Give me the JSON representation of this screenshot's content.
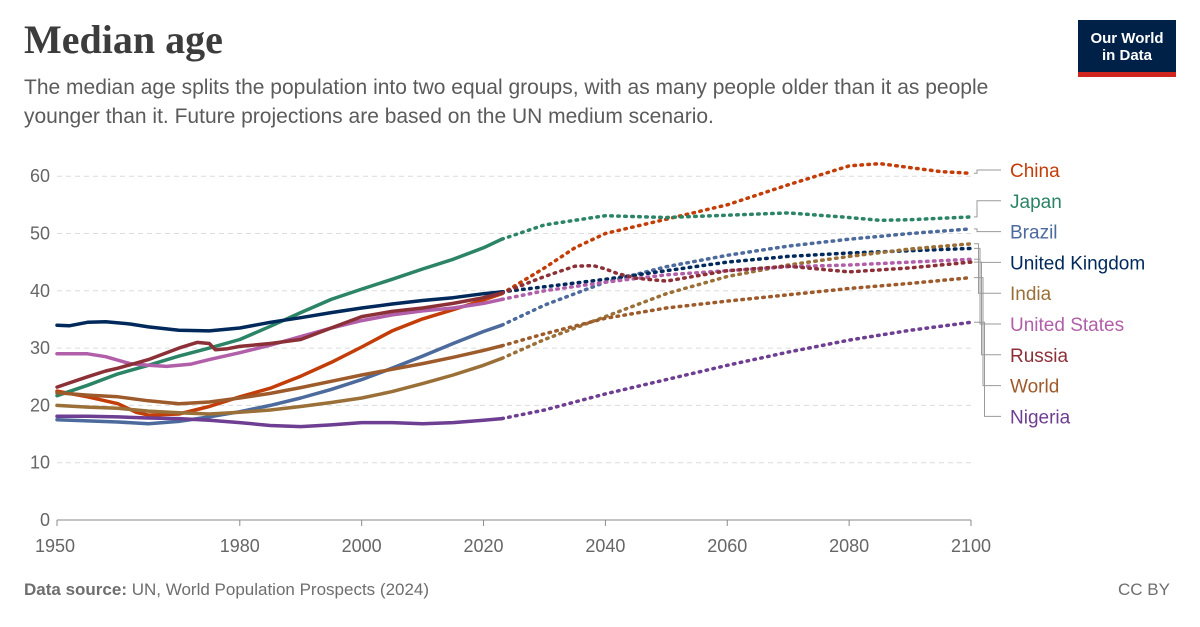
{
  "title": "Median age",
  "subtitle": "The median age splits the population into two equal groups, with as many people older than it as people younger than it. Future projections are based on the UN medium scenario.",
  "logo": {
    "line1": "Our World",
    "line2": "in Data",
    "bg_color": "#002147",
    "accent_color": "#ce261e"
  },
  "footer": {
    "source_label": "Data source:",
    "source_text": "UN, World Population Prospects (2024)",
    "license": "CC BY"
  },
  "chart_data": {
    "type": "line",
    "title": "Median age",
    "xlim": [
      1950,
      2100
    ],
    "ylim": [
      0,
      65
    ],
    "x_ticks": [
      1950,
      1980,
      2000,
      2020,
      2040,
      2060,
      2080,
      2100
    ],
    "y_ticks": [
      0,
      10,
      20,
      30,
      40,
      50,
      60
    ],
    "projection_start": 2023,
    "grid": "horizontal-dashed",
    "legend": "right-labels",
    "series": [
      {
        "name": "China",
        "color": "#c33d08",
        "points": [
          [
            1950,
            22.5
          ],
          [
            1955,
            21.5
          ],
          [
            1960,
            20.3
          ],
          [
            1963,
            18.8
          ],
          [
            1965,
            18.3
          ],
          [
            1970,
            18.5
          ],
          [
            1975,
            19.8
          ],
          [
            1980,
            21.5
          ],
          [
            1985,
            23
          ],
          [
            1990,
            25.1
          ],
          [
            1995,
            27.5
          ],
          [
            2000,
            30.2
          ],
          [
            2005,
            33
          ],
          [
            2010,
            35.1
          ],
          [
            2015,
            36.7
          ],
          [
            2020,
            38.4
          ],
          [
            2023,
            39.5
          ],
          [
            2030,
            44
          ],
          [
            2035,
            47.5
          ],
          [
            2040,
            50
          ],
          [
            2050,
            52.5
          ],
          [
            2060,
            55
          ],
          [
            2070,
            58.5
          ],
          [
            2080,
            61.8
          ],
          [
            2085,
            62.2
          ],
          [
            2090,
            61.5
          ],
          [
            2095,
            60.8
          ],
          [
            2100,
            60.5
          ]
        ]
      },
      {
        "name": "Japan",
        "color": "#2b8465",
        "points": [
          [
            1950,
            21.7
          ],
          [
            1955,
            23.5
          ],
          [
            1960,
            25.5
          ],
          [
            1965,
            27
          ],
          [
            1970,
            28.6
          ],
          [
            1975,
            30
          ],
          [
            1980,
            31.5
          ],
          [
            1985,
            33.8
          ],
          [
            1990,
            36.2
          ],
          [
            1995,
            38.5
          ],
          [
            2000,
            40.3
          ],
          [
            2005,
            42
          ],
          [
            2010,
            43.8
          ],
          [
            2015,
            45.5
          ],
          [
            2020,
            47.5
          ],
          [
            2023,
            49
          ],
          [
            2030,
            51.5
          ],
          [
            2040,
            53.1
          ],
          [
            2050,
            52.8
          ],
          [
            2060,
            53.2
          ],
          [
            2070,
            53.6
          ],
          [
            2080,
            52.8
          ],
          [
            2085,
            52.3
          ],
          [
            2090,
            52.4
          ],
          [
            2100,
            52.9
          ]
        ]
      },
      {
        "name": "Brazil",
        "color": "#4c6a9c",
        "points": [
          [
            1950,
            17.5
          ],
          [
            1955,
            17.3
          ],
          [
            1960,
            17.1
          ],
          [
            1965,
            16.8
          ],
          [
            1970,
            17.2
          ],
          [
            1975,
            18
          ],
          [
            1980,
            18.9
          ],
          [
            1985,
            20
          ],
          [
            1990,
            21.3
          ],
          [
            1995,
            22.8
          ],
          [
            2000,
            24.5
          ],
          [
            2005,
            26.5
          ],
          [
            2010,
            28.6
          ],
          [
            2015,
            30.8
          ],
          [
            2020,
            32.9
          ],
          [
            2023,
            34
          ],
          [
            2030,
            37.5
          ],
          [
            2040,
            41.5
          ],
          [
            2050,
            44.2
          ],
          [
            2060,
            46.2
          ],
          [
            2070,
            47.8
          ],
          [
            2080,
            49
          ],
          [
            2090,
            50
          ],
          [
            2100,
            50.8
          ]
        ]
      },
      {
        "name": "United Kingdom",
        "color": "#00295b",
        "points": [
          [
            1950,
            34
          ],
          [
            1952,
            33.9
          ],
          [
            1955,
            34.5
          ],
          [
            1958,
            34.6
          ],
          [
            1962,
            34.2
          ],
          [
            1965,
            33.7
          ],
          [
            1970,
            33.1
          ],
          [
            1975,
            33
          ],
          [
            1980,
            33.5
          ],
          [
            1985,
            34.5
          ],
          [
            1990,
            35.3
          ],
          [
            1995,
            36.2
          ],
          [
            2000,
            37
          ],
          [
            2005,
            37.7
          ],
          [
            2010,
            38.3
          ],
          [
            2015,
            38.8
          ],
          [
            2020,
            39.5
          ],
          [
            2023,
            39.8
          ],
          [
            2030,
            40.7
          ],
          [
            2040,
            42
          ],
          [
            2050,
            43.5
          ],
          [
            2060,
            45
          ],
          [
            2070,
            46
          ],
          [
            2080,
            46.6
          ],
          [
            2090,
            47
          ],
          [
            2100,
            47.4
          ]
        ]
      },
      {
        "name": "India",
        "color": "#9a7038",
        "points": [
          [
            1950,
            20
          ],
          [
            1955,
            19.7
          ],
          [
            1960,
            19.5
          ],
          [
            1965,
            19
          ],
          [
            1970,
            18.7
          ],
          [
            1975,
            18.5
          ],
          [
            1980,
            18.8
          ],
          [
            1985,
            19.2
          ],
          [
            1990,
            19.8
          ],
          [
            1995,
            20.5
          ],
          [
            2000,
            21.3
          ],
          [
            2005,
            22.4
          ],
          [
            2010,
            23.8
          ],
          [
            2015,
            25.3
          ],
          [
            2020,
            27
          ],
          [
            2023,
            28.2
          ],
          [
            2030,
            31.5
          ],
          [
            2040,
            35.5
          ],
          [
            2050,
            39.5
          ],
          [
            2060,
            42.5
          ],
          [
            2070,
            44.5
          ],
          [
            2080,
            46
          ],
          [
            2090,
            47.3
          ],
          [
            2100,
            48.2
          ]
        ]
      },
      {
        "name": "United States",
        "color": "#b15fa8",
        "points": [
          [
            1950,
            29
          ],
          [
            1955,
            29
          ],
          [
            1958,
            28.5
          ],
          [
            1962,
            27.3
          ],
          [
            1965,
            27
          ],
          [
            1968,
            26.8
          ],
          [
            1972,
            27.2
          ],
          [
            1975,
            28
          ],
          [
            1980,
            29.2
          ],
          [
            1985,
            30.5
          ],
          [
            1990,
            32
          ],
          [
            1995,
            33.5
          ],
          [
            2000,
            34.8
          ],
          [
            2005,
            35.8
          ],
          [
            2010,
            36.5
          ],
          [
            2015,
            37
          ],
          [
            2020,
            37.8
          ],
          [
            2023,
            38.5
          ],
          [
            2030,
            40
          ],
          [
            2040,
            41.5
          ],
          [
            2050,
            42.8
          ],
          [
            2060,
            43.5
          ],
          [
            2070,
            44.2
          ],
          [
            2080,
            44.5
          ],
          [
            2090,
            45
          ],
          [
            2100,
            45.5
          ]
        ]
      },
      {
        "name": "Russia",
        "color": "#8c3037",
        "points": [
          [
            1950,
            23.2
          ],
          [
            1955,
            25
          ],
          [
            1958,
            26
          ],
          [
            1960,
            26.5
          ],
          [
            1965,
            28
          ],
          [
            1970,
            30
          ],
          [
            1973,
            31
          ],
          [
            1975,
            30.8
          ],
          [
            1976,
            29.7
          ],
          [
            1978,
            29.9
          ],
          [
            1980,
            30.3
          ],
          [
            1985,
            30.8
          ],
          [
            1990,
            31.5
          ],
          [
            1995,
            33.5
          ],
          [
            2000,
            35.5
          ],
          [
            2005,
            36.4
          ],
          [
            2010,
            37
          ],
          [
            2015,
            37.8
          ],
          [
            2020,
            38.8
          ],
          [
            2023,
            39.6
          ],
          [
            2030,
            42.5
          ],
          [
            2035,
            44.3
          ],
          [
            2038,
            44.4
          ],
          [
            2040,
            43.8
          ],
          [
            2042,
            43
          ],
          [
            2045,
            42.2
          ],
          [
            2050,
            41.7
          ],
          [
            2060,
            43.5
          ],
          [
            2070,
            44.3
          ],
          [
            2080,
            43.3
          ],
          [
            2090,
            44
          ],
          [
            2100,
            45
          ]
        ]
      },
      {
        "name": "World",
        "color": "#9d5b2b",
        "points": [
          [
            1950,
            22.2
          ],
          [
            1955,
            21.8
          ],
          [
            1960,
            21.5
          ],
          [
            1965,
            20.8
          ],
          [
            1970,
            20.3
          ],
          [
            1975,
            20.6
          ],
          [
            1980,
            21.3
          ],
          [
            1985,
            22.1
          ],
          [
            1990,
            23.1
          ],
          [
            1995,
            24.2
          ],
          [
            2000,
            25.3
          ],
          [
            2005,
            26.3
          ],
          [
            2010,
            27.3
          ],
          [
            2015,
            28.4
          ],
          [
            2020,
            29.6
          ],
          [
            2023,
            30.4
          ],
          [
            2030,
            32.5
          ],
          [
            2040,
            35.2
          ],
          [
            2050,
            37
          ],
          [
            2060,
            38.2
          ],
          [
            2070,
            39.3
          ],
          [
            2080,
            40.4
          ],
          [
            2090,
            41.3
          ],
          [
            2100,
            42.3
          ]
        ]
      },
      {
        "name": "Nigeria",
        "color": "#6d3e91",
        "points": [
          [
            1950,
            18.1
          ],
          [
            1955,
            18.1
          ],
          [
            1960,
            18
          ],
          [
            1965,
            17.8
          ],
          [
            1970,
            17.7
          ],
          [
            1975,
            17.4
          ],
          [
            1980,
            17
          ],
          [
            1985,
            16.5
          ],
          [
            1990,
            16.3
          ],
          [
            1995,
            16.6
          ],
          [
            2000,
            17
          ],
          [
            2005,
            17
          ],
          [
            2010,
            16.8
          ],
          [
            2015,
            17
          ],
          [
            2020,
            17.4
          ],
          [
            2023,
            17.7
          ],
          [
            2030,
            19.2
          ],
          [
            2040,
            22
          ],
          [
            2050,
            24.5
          ],
          [
            2060,
            27
          ],
          [
            2070,
            29.3
          ],
          [
            2080,
            31.4
          ],
          [
            2090,
            33.1
          ],
          [
            2100,
            34.5
          ]
        ]
      }
    ]
  }
}
